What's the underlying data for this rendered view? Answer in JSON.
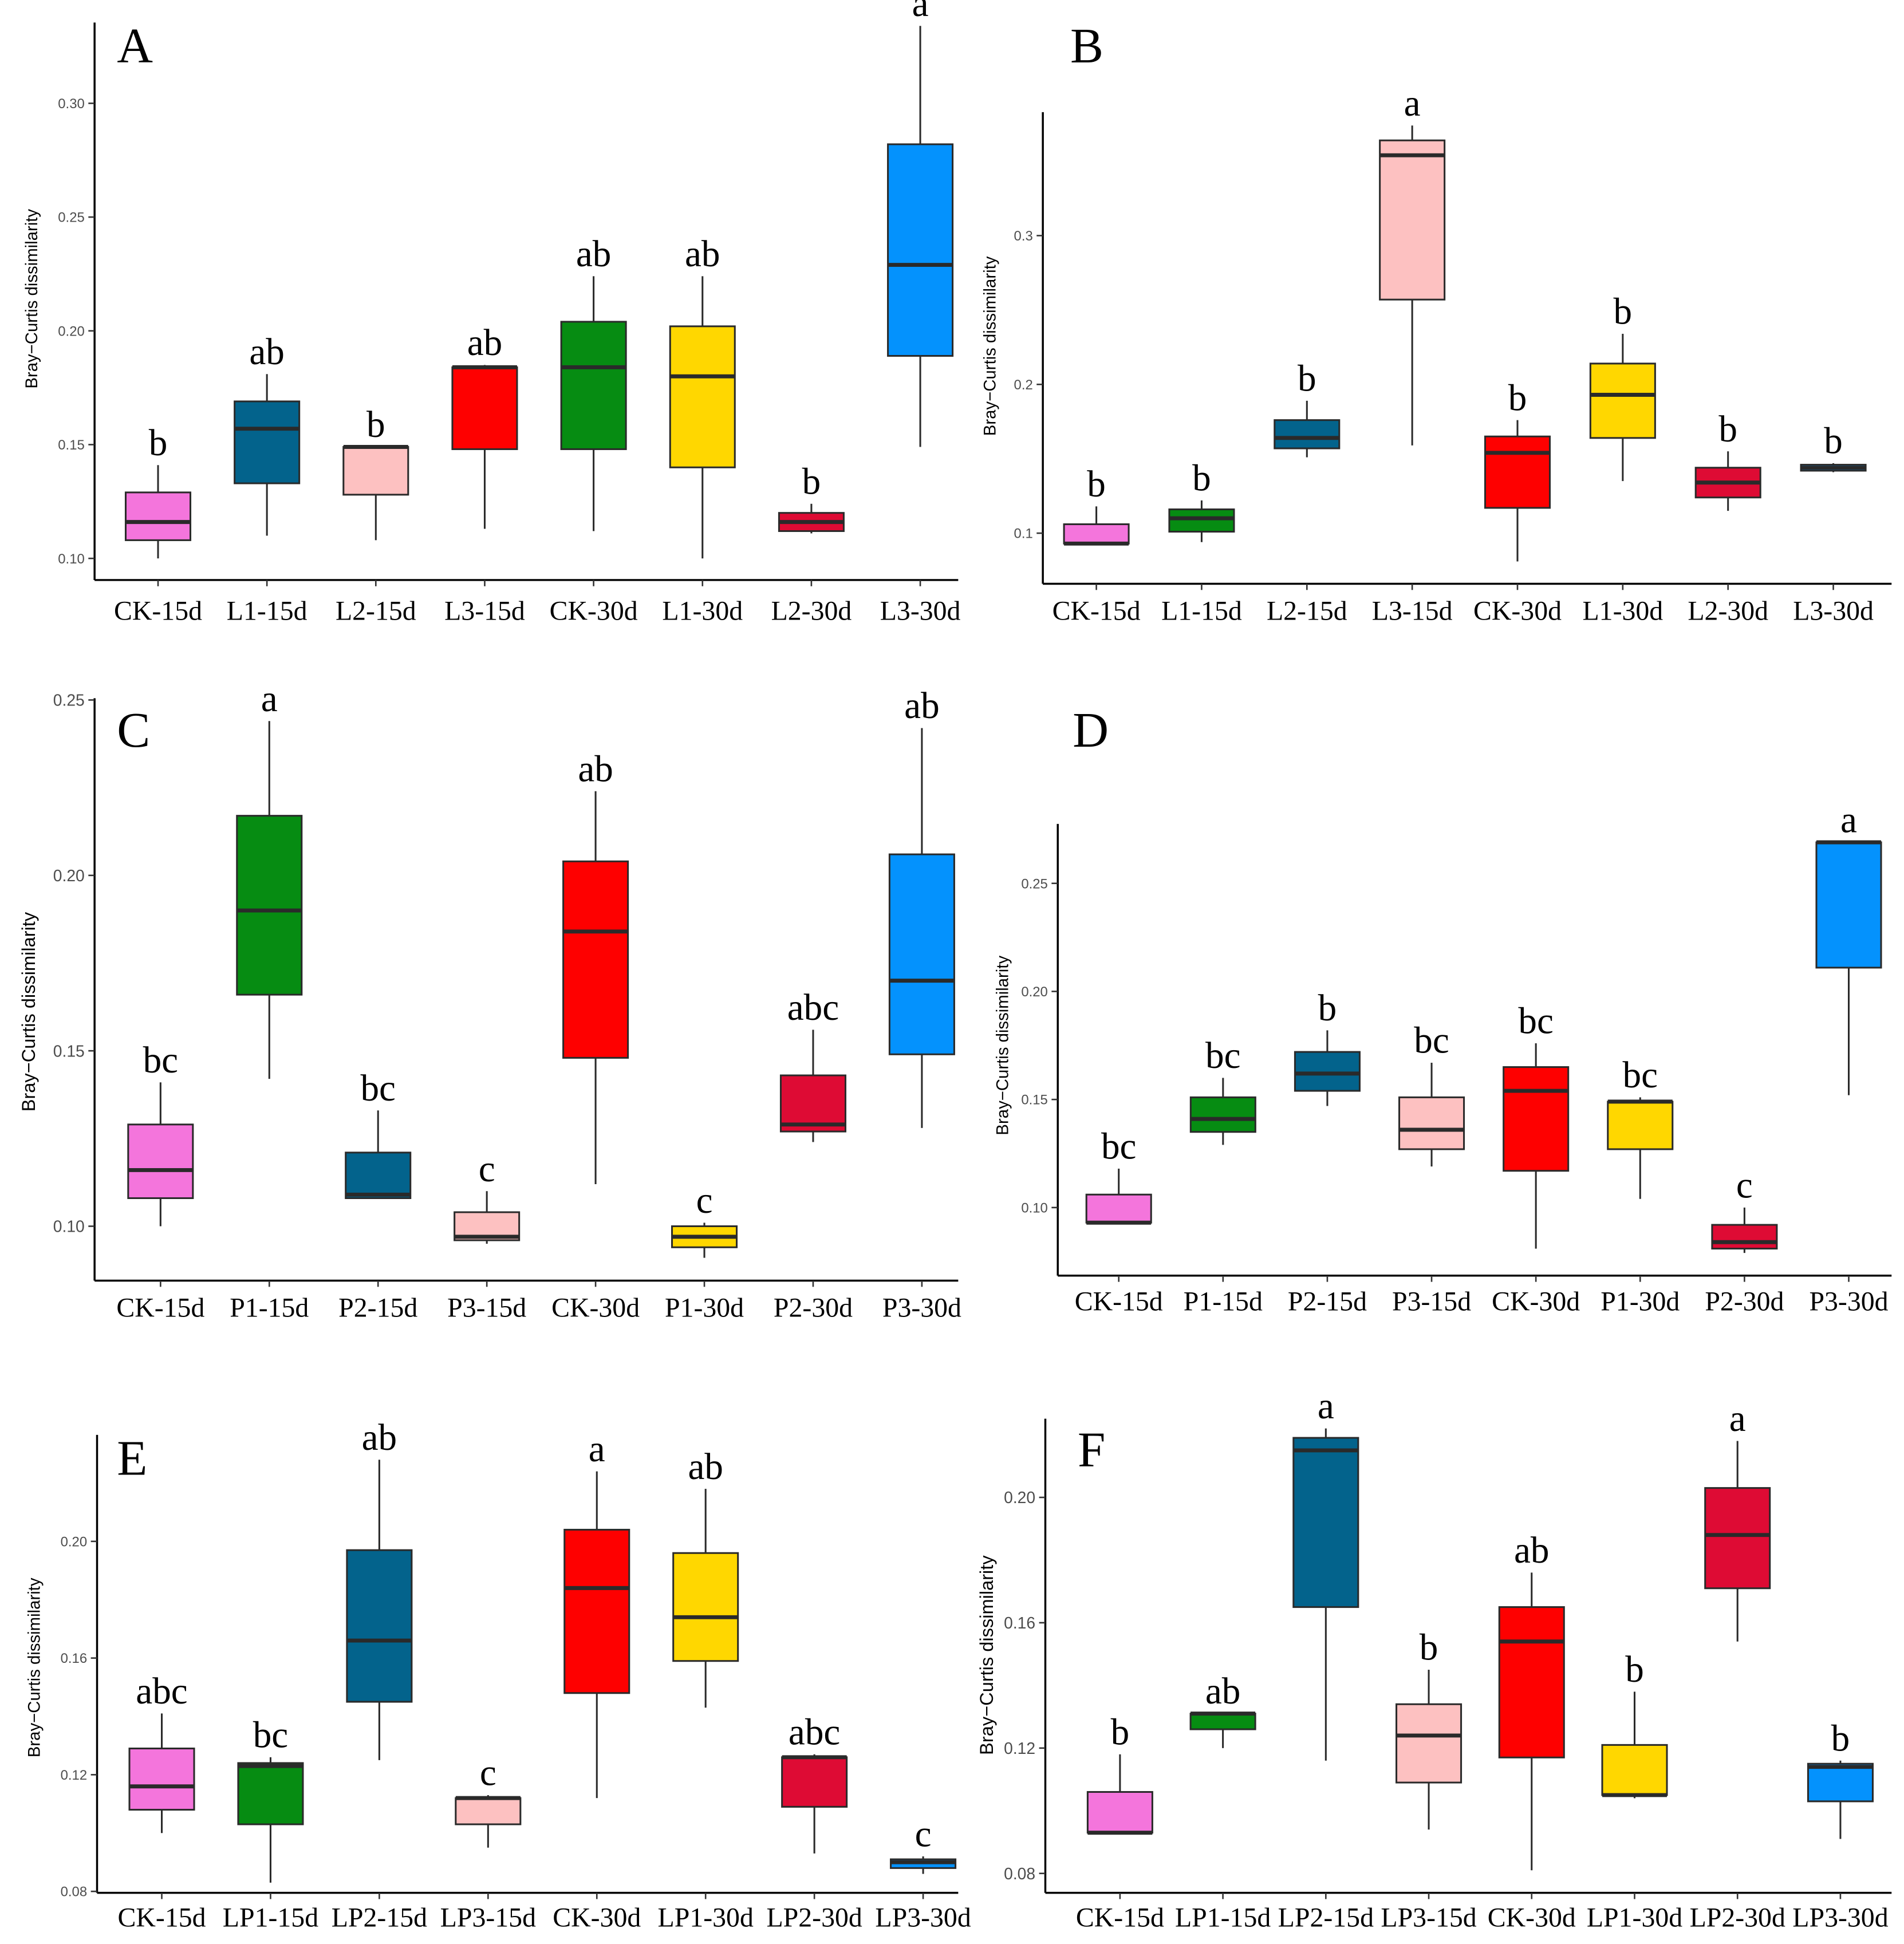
{
  "figure": {
    "colors": {
      "pink": "#f475dc",
      "green": "#068c12",
      "teal": "#03638c",
      "lightpink": "#fdc1c1",
      "red": "#fe0000",
      "yellow": "#ffd700",
      "crimson": "#de0b34",
      "blue": "#0492fd",
      "median": "#2a2a2a",
      "box_border": "#2a2a2a",
      "axis": "#000000"
    }
  },
  "chart_data": [
    {
      "panel": "A",
      "type": "box",
      "ylabel": "Bray−Curtis dissimilarity",
      "ylim": [
        0.0905,
        0.3355
      ],
      "yticks": [
        0.1,
        0.15,
        0.2,
        0.25,
        0.3
      ],
      "ytick_labels": [
        "0.10",
        "0.15",
        "0.20",
        "0.25",
        "0.30"
      ],
      "categories": [
        "CK-15d",
        "L1-15d",
        "L2-15d",
        "L3-15d",
        "CK-30d",
        "L1-30d",
        "L2-30d",
        "L3-30d"
      ],
      "boxes": [
        {
          "min": 0.1,
          "q1": 0.108,
          "median": 0.116,
          "q3": 0.129,
          "max": 0.141,
          "color": "pink",
          "letter": "b"
        },
        {
          "min": 0.11,
          "q1": 0.133,
          "median": 0.157,
          "q3": 0.169,
          "max": 0.181,
          "color": "teal",
          "letter": "ab"
        },
        {
          "min": 0.108,
          "q1": 0.128,
          "median": 0.149,
          "q3": 0.149,
          "max": 0.149,
          "color": "lightpink",
          "letter": "b"
        },
        {
          "min": 0.113,
          "q1": 0.148,
          "median": 0.184,
          "q3": 0.184,
          "max": 0.185,
          "color": "red",
          "letter": "ab"
        },
        {
          "min": 0.112,
          "q1": 0.148,
          "median": 0.184,
          "q3": 0.204,
          "max": 0.224,
          "color": "green",
          "letter": "ab"
        },
        {
          "min": 0.1,
          "q1": 0.14,
          "median": 0.18,
          "q3": 0.202,
          "max": 0.224,
          "color": "yellow",
          "letter": "ab"
        },
        {
          "min": 0.111,
          "q1": 0.112,
          "median": 0.116,
          "q3": 0.12,
          "max": 0.124,
          "color": "crimson",
          "letter": "b"
        },
        {
          "min": 0.149,
          "q1": 0.189,
          "median": 0.229,
          "q3": 0.282,
          "max": 0.334,
          "color": "blue",
          "letter": "a"
        }
      ]
    },
    {
      "panel": "B",
      "type": "box",
      "ylabel": "Bray−Curtis dissimilarity",
      "ylim": [
        0.066,
        0.383
      ],
      "yticks": [
        0.1,
        0.2,
        0.3
      ],
      "ytick_labels": [
        "0.1",
        "0.2",
        "0.3"
      ],
      "categories": [
        "CK-15d",
        "L1-15d",
        "L2-15d",
        "L3-15d",
        "CK-30d",
        "L1-30d",
        "L2-30d",
        "L3-30d"
      ],
      "boxes": [
        {
          "min": 0.093,
          "q1": 0.093,
          "median": 0.093,
          "q3": 0.106,
          "max": 0.118,
          "color": "pink",
          "letter": "b"
        },
        {
          "min": 0.094,
          "q1": 0.101,
          "median": 0.11,
          "q3": 0.116,
          "max": 0.122,
          "color": "green",
          "letter": "b"
        },
        {
          "min": 0.151,
          "q1": 0.157,
          "median": 0.164,
          "q3": 0.176,
          "max": 0.189,
          "color": "teal",
          "letter": "b"
        },
        {
          "min": 0.159,
          "q1": 0.257,
          "median": 0.354,
          "q3": 0.364,
          "max": 0.374,
          "color": "lightpink",
          "letter": "a"
        },
        {
          "min": 0.081,
          "q1": 0.117,
          "median": 0.154,
          "q3": 0.165,
          "max": 0.176,
          "color": "red",
          "letter": "b"
        },
        {
          "min": 0.135,
          "q1": 0.164,
          "median": 0.193,
          "q3": 0.214,
          "max": 0.234,
          "color": "yellow",
          "letter": "b"
        },
        {
          "min": 0.115,
          "q1": 0.124,
          "median": 0.134,
          "q3": 0.144,
          "max": 0.155,
          "color": "crimson",
          "letter": "b"
        },
        {
          "min": 0.141,
          "q1": 0.142,
          "median": 0.144,
          "q3": 0.146,
          "max": 0.147,
          "color": "blue",
          "letter": "b"
        }
      ]
    },
    {
      "panel": "C",
      "type": "box",
      "ylabel": "Bray−Curtis dissimilarity",
      "ylim": [
        0.0845,
        0.2505
      ],
      "yticks": [
        0.1,
        0.15,
        0.2,
        0.25
      ],
      "ytick_labels": [
        "0.10",
        "0.15",
        "0.20",
        "0.25"
      ],
      "categories": [
        "CK-15d",
        "P1-15d",
        "P2-15d",
        "P3-15d",
        "CK-30d",
        "P1-30d",
        "P2-30d",
        "P3-30d"
      ],
      "boxes": [
        {
          "min": 0.1,
          "q1": 0.108,
          "median": 0.116,
          "q3": 0.129,
          "max": 0.141,
          "color": "pink",
          "letter": "bc"
        },
        {
          "min": 0.142,
          "q1": 0.166,
          "median": 0.19,
          "q3": 0.217,
          "max": 0.244,
          "color": "green",
          "letter": "a"
        },
        {
          "min": 0.108,
          "q1": 0.108,
          "median": 0.109,
          "q3": 0.121,
          "max": 0.133,
          "color": "teal",
          "letter": "bc"
        },
        {
          "min": 0.095,
          "q1": 0.096,
          "median": 0.097,
          "q3": 0.104,
          "max": 0.11,
          "color": "lightpink",
          "letter": "c"
        },
        {
          "min": 0.112,
          "q1": 0.148,
          "median": 0.184,
          "q3": 0.204,
          "max": 0.224,
          "color": "red",
          "letter": "ab"
        },
        {
          "min": 0.091,
          "q1": 0.094,
          "median": 0.097,
          "q3": 0.1,
          "max": 0.101,
          "color": "yellow",
          "letter": "c"
        },
        {
          "min": 0.124,
          "q1": 0.127,
          "median": 0.129,
          "q3": 0.143,
          "max": 0.156,
          "color": "crimson",
          "letter": "abc"
        },
        {
          "min": 0.128,
          "q1": 0.149,
          "median": 0.17,
          "q3": 0.206,
          "max": 0.242,
          "color": "blue",
          "letter": "ab"
        }
      ]
    },
    {
      "panel": "D",
      "type": "box",
      "ylabel": "Bray−Curtis dissimilarity",
      "ylim": [
        0.0685,
        0.2775
      ],
      "yticks": [
        0.1,
        0.15,
        0.2,
        0.25
      ],
      "ytick_labels": [
        "0.10",
        "0.15",
        "0.20",
        "0.25"
      ],
      "categories": [
        "CK-15d",
        "P1-15d",
        "P2-15d",
        "P3-15d",
        "CK-30d",
        "P1-30d",
        "P2-30d",
        "P3-30d"
      ],
      "boxes": [
        {
          "min": 0.093,
          "q1": 0.093,
          "median": 0.093,
          "q3": 0.106,
          "max": 0.118,
          "color": "pink",
          "letter": "bc"
        },
        {
          "min": 0.129,
          "q1": 0.135,
          "median": 0.141,
          "q3": 0.151,
          "max": 0.16,
          "color": "green",
          "letter": "bc"
        },
        {
          "min": 0.147,
          "q1": 0.154,
          "median": 0.162,
          "q3": 0.172,
          "max": 0.182,
          "color": "teal",
          "letter": "b"
        },
        {
          "min": 0.119,
          "q1": 0.127,
          "median": 0.136,
          "q3": 0.151,
          "max": 0.167,
          "color": "lightpink",
          "letter": "bc"
        },
        {
          "min": 0.081,
          "q1": 0.117,
          "median": 0.154,
          "q3": 0.165,
          "max": 0.176,
          "color": "red",
          "letter": "bc"
        },
        {
          "min": 0.104,
          "q1": 0.127,
          "median": 0.149,
          "q3": 0.149,
          "max": 0.151,
          "color": "yellow",
          "letter": "bc"
        },
        {
          "min": 0.079,
          "q1": 0.081,
          "median": 0.084,
          "q3": 0.092,
          "max": 0.1,
          "color": "crimson",
          "letter": "c"
        },
        {
          "min": 0.152,
          "q1": 0.211,
          "median": 0.269,
          "q3": 0.269,
          "max": 0.269,
          "color": "blue",
          "letter": "a"
        }
      ]
    },
    {
      "panel": "E",
      "type": "box",
      "ylabel": "Bray−Curtis dissimilarity",
      "ylim": [
        0.0795,
        0.2365
      ],
      "yticks": [
        0.08,
        0.12,
        0.16,
        0.2
      ],
      "ytick_labels": [
        "0.08",
        "0.12",
        "0.16",
        "0.20"
      ],
      "categories": [
        "CK-15d",
        "LP1-15d",
        "LP2-15d",
        "LP3-15d",
        "CK-30d",
        "LP1-30d",
        "LP2-30d",
        "LP3-30d"
      ],
      "boxes": [
        {
          "min": 0.1,
          "q1": 0.108,
          "median": 0.116,
          "q3": 0.129,
          "max": 0.141,
          "color": "pink",
          "letter": "abc"
        },
        {
          "min": 0.083,
          "q1": 0.103,
          "median": 0.123,
          "q3": 0.124,
          "max": 0.126,
          "color": "green",
          "letter": "bc"
        },
        {
          "min": 0.125,
          "q1": 0.145,
          "median": 0.166,
          "q3": 0.197,
          "max": 0.228,
          "color": "teal",
          "letter": "ab"
        },
        {
          "min": 0.095,
          "q1": 0.103,
          "median": 0.112,
          "q3": 0.112,
          "max": 0.113,
          "color": "lightpink",
          "letter": "c"
        },
        {
          "min": 0.112,
          "q1": 0.148,
          "median": 0.184,
          "q3": 0.204,
          "max": 0.224,
          "color": "red",
          "letter": "a"
        },
        {
          "min": 0.143,
          "q1": 0.159,
          "median": 0.174,
          "q3": 0.196,
          "max": 0.218,
          "color": "yellow",
          "letter": "ab"
        },
        {
          "min": 0.093,
          "q1": 0.109,
          "median": 0.126,
          "q3": 0.126,
          "max": 0.127,
          "color": "crimson",
          "letter": "abc"
        },
        {
          "min": 0.086,
          "q1": 0.088,
          "median": 0.09,
          "q3": 0.091,
          "max": 0.092,
          "color": "blue",
          "letter": "c"
        }
      ]
    },
    {
      "panel": "F",
      "type": "box",
      "ylabel": "Bray−Curtis dissimilarity",
      "ylim": [
        0.0738,
        0.2251
      ],
      "yticks": [
        0.08,
        0.12,
        0.16,
        0.2
      ],
      "ytick_labels": [
        "0.08",
        "0.12",
        "0.16",
        "0.20"
      ],
      "categories": [
        "CK-15d",
        "LP1-15d",
        "LP2-15d",
        "LP3-15d",
        "CK-30d",
        "LP1-30d",
        "LP2-30d",
        "LP3-30d"
      ],
      "boxes": [
        {
          "min": 0.093,
          "q1": 0.093,
          "median": 0.093,
          "q3": 0.106,
          "max": 0.118,
          "color": "pink",
          "letter": "b"
        },
        {
          "min": 0.12,
          "q1": 0.126,
          "median": 0.131,
          "q3": 0.131,
          "max": 0.131,
          "color": "green",
          "letter": "ab"
        },
        {
          "min": 0.116,
          "q1": 0.165,
          "median": 0.215,
          "q3": 0.219,
          "max": 0.222,
          "color": "teal",
          "letter": "a"
        },
        {
          "min": 0.094,
          "q1": 0.109,
          "median": 0.124,
          "q3": 0.134,
          "max": 0.145,
          "color": "lightpink",
          "letter": "b"
        },
        {
          "min": 0.081,
          "q1": 0.117,
          "median": 0.154,
          "q3": 0.165,
          "max": 0.176,
          "color": "red",
          "letter": "ab"
        },
        {
          "min": 0.104,
          "q1": 0.105,
          "median": 0.105,
          "q3": 0.121,
          "max": 0.138,
          "color": "yellow",
          "letter": "b"
        },
        {
          "min": 0.154,
          "q1": 0.171,
          "median": 0.188,
          "q3": 0.203,
          "max": 0.218,
          "color": "crimson",
          "letter": "a"
        },
        {
          "min": 0.091,
          "q1": 0.103,
          "median": 0.114,
          "q3": 0.115,
          "max": 0.116,
          "color": "blue",
          "letter": "b"
        }
      ]
    }
  ]
}
